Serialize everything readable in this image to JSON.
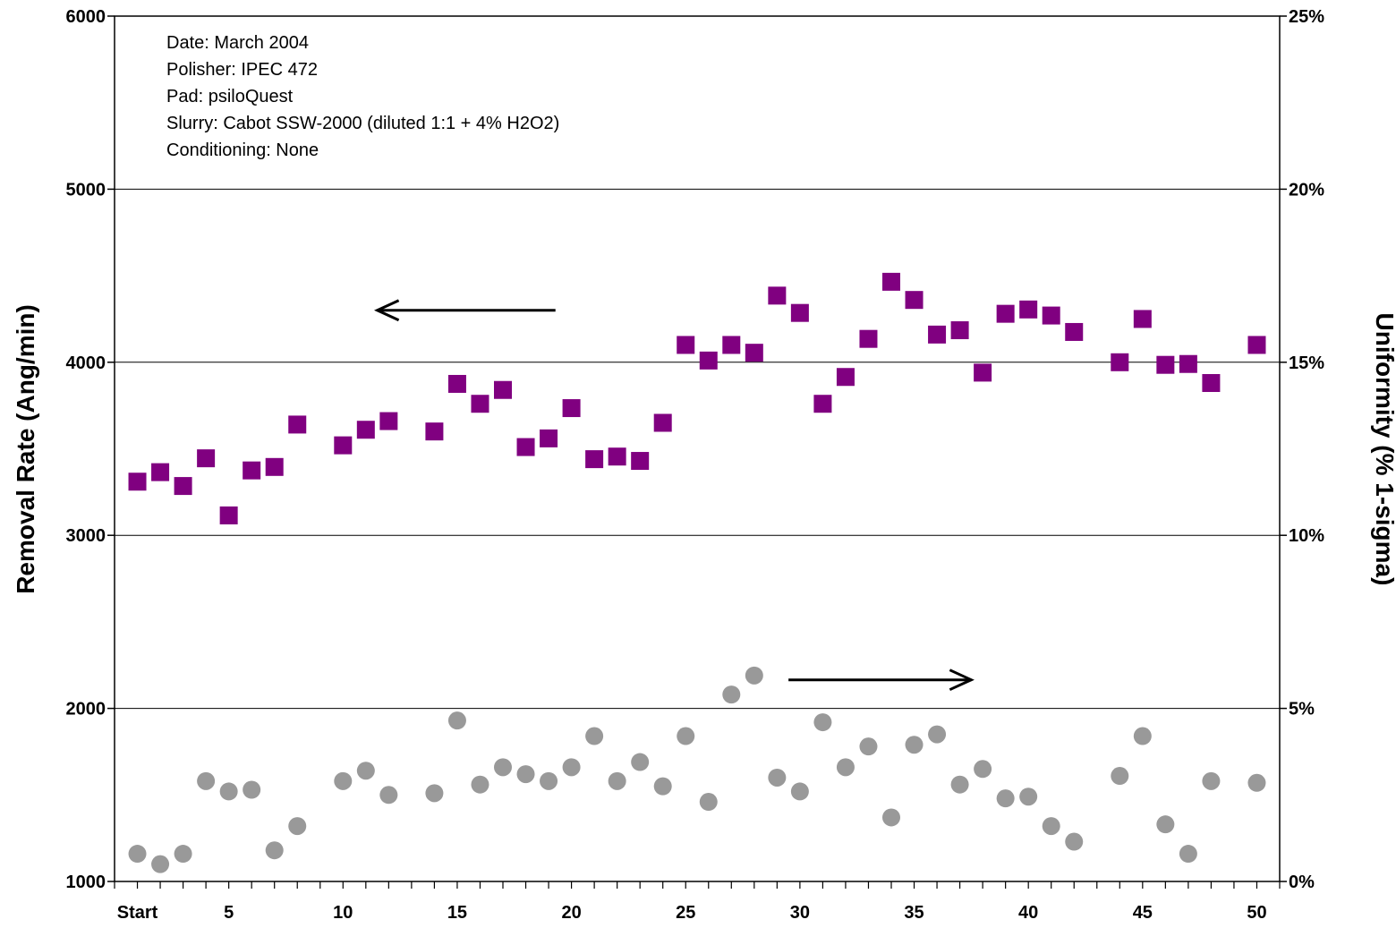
{
  "chart_data": {
    "type": "scatter",
    "title": "",
    "annotations": [
      "Date: March 2004",
      "Polisher:  IPEC 472",
      "Pad: psiloQuest",
      "Slurry: Cabot SSW-2000  (diluted 1:1 + 4% H2O2)",
      "Conditioning:  None"
    ],
    "ylabel": "Removal Rate (Ang/min)",
    "y2label": "Uniformity (% 1-sigma)",
    "ylim": [
      1000,
      6000
    ],
    "y2lim": [
      0,
      25
    ],
    "xlim": [
      0,
      51
    ],
    "y_ticks": [
      "1000",
      "2000",
      "3000",
      "4000",
      "5000",
      "6000"
    ],
    "y2_ticks": [
      "0%",
      "5%",
      "10%",
      "15%",
      "20%",
      "25%"
    ],
    "x_ticks": [
      {
        "x": 1,
        "label": "Start"
      },
      {
        "x": 5,
        "label": "5"
      },
      {
        "x": 10,
        "label": "10"
      },
      {
        "x": 15,
        "label": "15"
      },
      {
        "x": 20,
        "label": "20"
      },
      {
        "x": 25,
        "label": "25"
      },
      {
        "x": 30,
        "label": "30"
      },
      {
        "x": 35,
        "label": "35"
      },
      {
        "x": 40,
        "label": "40"
      },
      {
        "x": 45,
        "label": "45"
      },
      {
        "x": 50,
        "label": "50"
      }
    ],
    "grid": "horizontal",
    "series": [
      {
        "axis": "left",
        "marker": "square",
        "color": "#800080",
        "x": [
          1,
          2,
          3,
          4,
          5,
          6,
          7,
          8,
          10,
          11,
          12,
          14,
          15,
          16,
          17,
          18,
          19,
          20,
          21,
          22,
          23,
          24,
          25,
          26,
          27,
          28,
          29,
          30,
          31,
          32,
          33,
          34,
          35,
          36,
          37,
          38,
          39,
          40,
          41,
          42,
          44,
          45,
          46,
          47,
          48,
          50
        ],
        "values": [
          3310,
          3365,
          3285,
          3445,
          3115,
          3375,
          3395,
          3640,
          3520,
          3610,
          3660,
          3600,
          3875,
          3760,
          3840,
          3510,
          3560,
          3735,
          3440,
          3455,
          3430,
          3650,
          4100,
          4010,
          4100,
          4055,
          4385,
          4285,
          3760,
          3915,
          4135,
          4465,
          4360,
          4160,
          4185,
          3940,
          4280,
          4305,
          4270,
          4175,
          4000,
          4250,
          3985,
          3990,
          3880,
          4100
        ]
      },
      {
        "axis": "right",
        "marker": "circle",
        "color": "#999999",
        "x": [
          1,
          2,
          3,
          4,
          5,
          6,
          7,
          8,
          10,
          11,
          12,
          14,
          15,
          16,
          17,
          18,
          19,
          20,
          21,
          22,
          23,
          24,
          25,
          26,
          27,
          28,
          29,
          30,
          31,
          32,
          33,
          34,
          35,
          36,
          37,
          38,
          39,
          40,
          41,
          42,
          44,
          45,
          46,
          47,
          48,
          50
        ],
        "values": [
          0.8,
          0.5,
          0.8,
          2.9,
          2.6,
          2.65,
          0.9,
          1.6,
          2.9,
          3.2,
          2.5,
          2.55,
          4.65,
          2.8,
          3.3,
          3.1,
          2.9,
          3.3,
          4.2,
          2.9,
          3.45,
          2.75,
          4.2,
          2.3,
          5.4,
          5.95,
          3.0,
          2.6,
          4.6,
          3.3,
          3.9,
          1.85,
          3.95,
          4.25,
          2.8,
          3.25,
          2.4,
          2.45,
          1.6,
          1.15,
          3.05,
          4.2,
          1.65,
          0.8,
          2.9,
          2.85
        ]
      }
    ],
    "arrows": [
      {
        "direction": "left",
        "x_from": 19.3,
        "x_to": 11.5,
        "y": 4300
      },
      {
        "direction": "right",
        "x_from": 29.5,
        "x_to": 37.5,
        "y": 2165
      }
    ]
  }
}
